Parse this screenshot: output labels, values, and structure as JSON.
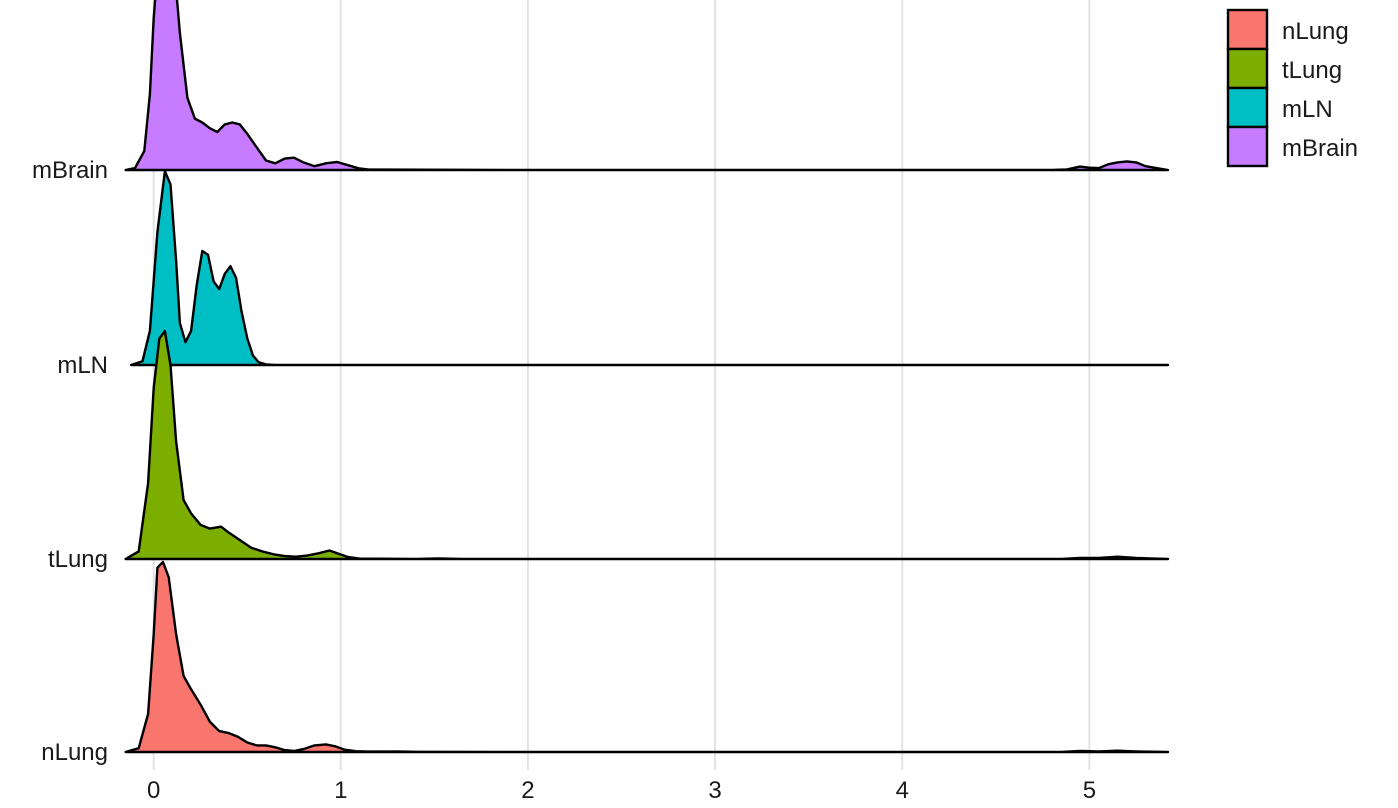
{
  "chart_data": {
    "type": "area",
    "subtype": "ridgeline-density",
    "title": "",
    "xlabel": "",
    "ylabel": "",
    "xlim": [
      -0.18,
      5.42
    ],
    "x_ticks": [
      0,
      1,
      2,
      3,
      4,
      5
    ],
    "x_tick_labels": [
      "0",
      "1",
      "2",
      "3",
      "4",
      "5"
    ],
    "grid": "vertical major gridlines",
    "legend_position": "top-right",
    "categories": [
      "nLung",
      "tLung",
      "mLN",
      "mBrain"
    ],
    "series": [
      {
        "name": "nLung",
        "color": "#F8766D",
        "x": [
          -0.15,
          -0.08,
          -0.03,
          0.0,
          0.02,
          0.05,
          0.08,
          0.12,
          0.16,
          0.2,
          0.25,
          0.3,
          0.35,
          0.4,
          0.45,
          0.5,
          0.55,
          0.6,
          0.65,
          0.7,
          0.75,
          0.8,
          0.86,
          0.92,
          0.97,
          1.02,
          1.08,
          1.15,
          1.3,
          1.4,
          2.0,
          3.0,
          4.0,
          4.85,
          4.95,
          5.05,
          5.15,
          5.25,
          5.42
        ],
        "density": [
          0.0,
          0.02,
          0.2,
          0.62,
          0.97,
          1.0,
          0.92,
          0.62,
          0.4,
          0.33,
          0.25,
          0.16,
          0.11,
          0.1,
          0.08,
          0.05,
          0.035,
          0.035,
          0.025,
          0.01,
          0.005,
          0.015,
          0.035,
          0.04,
          0.03,
          0.012,
          0.004,
          0.002,
          0.003,
          0.001,
          0.0,
          0.0,
          0.0,
          0.0,
          0.005,
          0.003,
          0.007,
          0.003,
          0.0
        ]
      },
      {
        "name": "tLung",
        "color": "#7CAE00",
        "x": [
          -0.15,
          -0.08,
          -0.03,
          0.0,
          0.03,
          0.06,
          0.09,
          0.12,
          0.16,
          0.2,
          0.25,
          0.3,
          0.36,
          0.4,
          0.46,
          0.52,
          0.58,
          0.64,
          0.7,
          0.76,
          0.82,
          0.88,
          0.94,
          0.98,
          1.04,
          1.1,
          1.4,
          1.52,
          1.65,
          2.0,
          3.0,
          4.0,
          4.85,
          4.95,
          5.05,
          5.15,
          5.25,
          5.42
        ],
        "density": [
          0.0,
          0.04,
          0.4,
          0.9,
          1.16,
          1.2,
          1.02,
          0.62,
          0.31,
          0.24,
          0.18,
          0.16,
          0.17,
          0.14,
          0.1,
          0.06,
          0.04,
          0.025,
          0.015,
          0.012,
          0.018,
          0.03,
          0.045,
          0.03,
          0.01,
          0.002,
          0.0,
          0.003,
          0.0,
          0.0,
          0.0,
          0.0,
          0.0,
          0.005,
          0.005,
          0.012,
          0.005,
          0.0
        ]
      },
      {
        "name": "mLN",
        "color": "#00BFC4",
        "x": [
          -0.12,
          -0.06,
          -0.02,
          0.02,
          0.06,
          0.09,
          0.12,
          0.14,
          0.17,
          0.2,
          0.23,
          0.26,
          0.29,
          0.32,
          0.35,
          0.38,
          0.41,
          0.44,
          0.47,
          0.5,
          0.53,
          0.56,
          0.6,
          0.65,
          1.0,
          2.0,
          3.0,
          4.0,
          5.0,
          5.42
        ],
        "density": [
          0.0,
          0.02,
          0.18,
          0.7,
          1.02,
          0.95,
          0.55,
          0.22,
          0.12,
          0.18,
          0.42,
          0.6,
          0.58,
          0.44,
          0.4,
          0.48,
          0.52,
          0.46,
          0.28,
          0.14,
          0.05,
          0.015,
          0.003,
          0.0,
          0.0,
          0.0,
          0.0,
          0.0,
          0.0,
          0.0
        ]
      },
      {
        "name": "mBrain",
        "color": "#C77CFF",
        "x": [
          -0.15,
          -0.1,
          -0.05,
          -0.02,
          0.0,
          0.02,
          0.04,
          0.07,
          0.1,
          0.14,
          0.18,
          0.22,
          0.26,
          0.3,
          0.34,
          0.38,
          0.42,
          0.46,
          0.5,
          0.55,
          0.6,
          0.65,
          0.7,
          0.75,
          0.8,
          0.86,
          0.92,
          0.98,
          1.04,
          1.1,
          1.15,
          2.0,
          3.0,
          4.0,
          4.8,
          4.88,
          4.95,
          5.0,
          5.05,
          5.1,
          5.15,
          5.2,
          5.25,
          5.3,
          5.42
        ],
        "density": [
          0.0,
          0.01,
          0.1,
          0.4,
          0.8,
          1.05,
          1.25,
          1.3,
          1.18,
          0.72,
          0.38,
          0.27,
          0.25,
          0.22,
          0.2,
          0.24,
          0.25,
          0.24,
          0.19,
          0.12,
          0.05,
          0.035,
          0.06,
          0.065,
          0.04,
          0.02,
          0.035,
          0.042,
          0.025,
          0.008,
          0.002,
          0.0,
          0.0,
          0.0,
          0.0,
          0.003,
          0.018,
          0.012,
          0.01,
          0.03,
          0.04,
          0.045,
          0.04,
          0.02,
          0.0
        ]
      }
    ],
    "legend": [
      {
        "label": "nLung",
        "color": "#F8766D"
      },
      {
        "label": "tLung",
        "color": "#7CAE00"
      },
      {
        "label": "mLN",
        "color": "#00BFC4"
      },
      {
        "label": "mBrain",
        "color": "#C77CFF"
      }
    ]
  }
}
